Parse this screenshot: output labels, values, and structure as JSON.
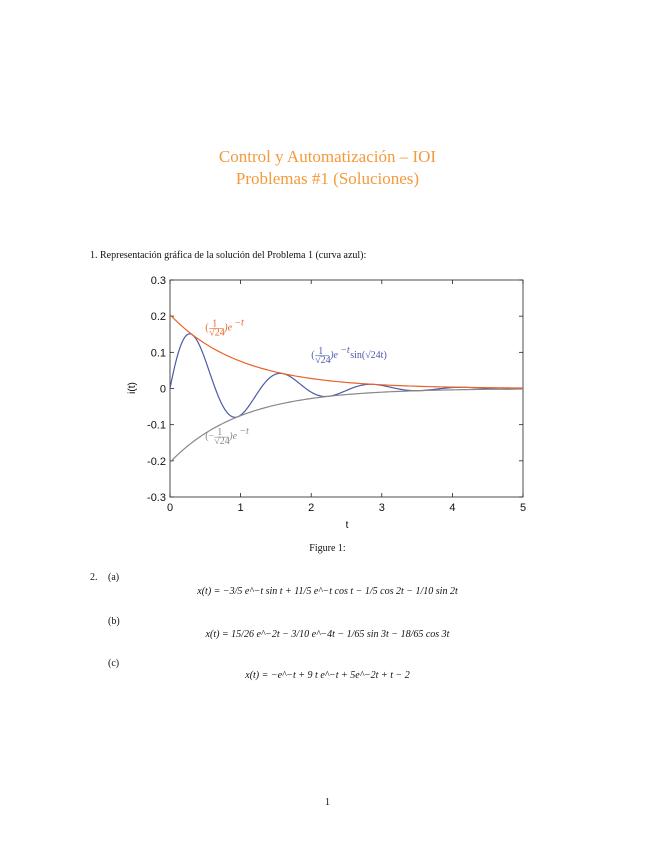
{
  "header": {
    "title_line1": "Control y Automatización – IOI",
    "title_line2": "Problemas #1 (Soluciones)"
  },
  "problem1": {
    "label": "1.  Representación gráfica de la solución del Problema 1 (curva azul):"
  },
  "figure": {
    "caption": "Figure 1:"
  },
  "chart_data": {
    "type": "line",
    "xlabel": "t",
    "ylabel": "i(t)",
    "xlim": [
      0,
      5
    ],
    "ylim": [
      -0.3,
      0.3
    ],
    "xticks": [
      "0",
      "1",
      "2",
      "3",
      "4",
      "5"
    ],
    "yticks": [
      "0.3",
      "0.2",
      "0.1",
      "0",
      "-0.1",
      "-0.2",
      "-0.3"
    ],
    "grid": false,
    "series": [
      {
        "name": "(1/√24)e^−t sin(√24 t)",
        "color": "#4a5aa8",
        "x": [
          0,
          0.1,
          0.2,
          0.3,
          0.4,
          0.5,
          0.6,
          0.7,
          0.8,
          0.9,
          1.0,
          1.1,
          1.2,
          1.3,
          1.4,
          1.5,
          1.6,
          1.7,
          1.8,
          1.9,
          2.0,
          2.1,
          2.2,
          2.3,
          2.4,
          2.5,
          2.6,
          2.7,
          2.8,
          2.9,
          3.0,
          3.2,
          3.4,
          3.6,
          3.8,
          4.0,
          4.2,
          4.4,
          4.6,
          4.8,
          5.0
        ],
        "y": [
          0,
          0.086,
          0.137,
          0.149,
          0.127,
          0.082,
          0.028,
          -0.021,
          -0.057,
          -0.074,
          -0.072,
          -0.054,
          -0.029,
          -0.003,
          0.019,
          0.032,
          0.035,
          0.03,
          0.02,
          0.007,
          -0.005,
          -0.012,
          -0.015,
          -0.014,
          -0.009,
          -0.003,
          0.003,
          0.006,
          0.007,
          0.006,
          0.004,
          -0.001,
          -0.003,
          -0.002,
          0.001,
          0.001,
          0.0,
          -0.001,
          0.0,
          0.0,
          0.0
        ]
      },
      {
        "name": "(1/√24)e^−t",
        "color": "#e8642c",
        "x": [
          0,
          0.5,
          1,
          1.5,
          2,
          2.5,
          3,
          3.5,
          4,
          4.5,
          5
        ],
        "y": [
          0.204,
          0.124,
          0.075,
          0.046,
          0.028,
          0.017,
          0.01,
          0.006,
          0.004,
          0.002,
          0.001
        ]
      },
      {
        "name": "(−1/√24)e^−t",
        "color": "#888888",
        "x": [
          0,
          0.5,
          1,
          1.5,
          2,
          2.5,
          3,
          3.5,
          4,
          4.5,
          5
        ],
        "y": [
          -0.204,
          -0.124,
          -0.075,
          -0.046,
          -0.028,
          -0.017,
          -0.01,
          -0.006,
          -0.004,
          -0.002,
          -0.001
        ]
      }
    ],
    "annotations": [
      {
        "text_main": "(",
        "frac_num": "1",
        "frac_den": "√24",
        "tail": ")e",
        "sup": "−t",
        "color": "#e8642c"
      },
      {
        "text_main": "(",
        "frac_num": "1",
        "frac_den": "√24",
        "tail": ")e",
        "sup": "−t",
        "tail2": " sin(√24t)",
        "color": "#4a5aa8"
      },
      {
        "text_main": "(−",
        "frac_num": "1",
        "frac_den": "√24",
        "tail": ")e",
        "sup": "−t",
        "color": "#888888"
      }
    ]
  },
  "problem2": {
    "number": "2.",
    "a_label": "(a)",
    "a_eq": "x(t) = −3/5 e^−t sin t + 11/5 e^−t cos t − 1/5 cos 2t − 1/10 sin 2t",
    "b_label": "(b)",
    "b_eq": "x(t) = 15/26 e^−2t − 3/10 e^−4t − 1/65 sin 3t − 18/65 cos 3t",
    "c_label": "(c)",
    "c_eq": "x(t) = −e^−t + 9 t e^−t + 5e^−2t + t − 2"
  },
  "footer": {
    "page": "1"
  }
}
